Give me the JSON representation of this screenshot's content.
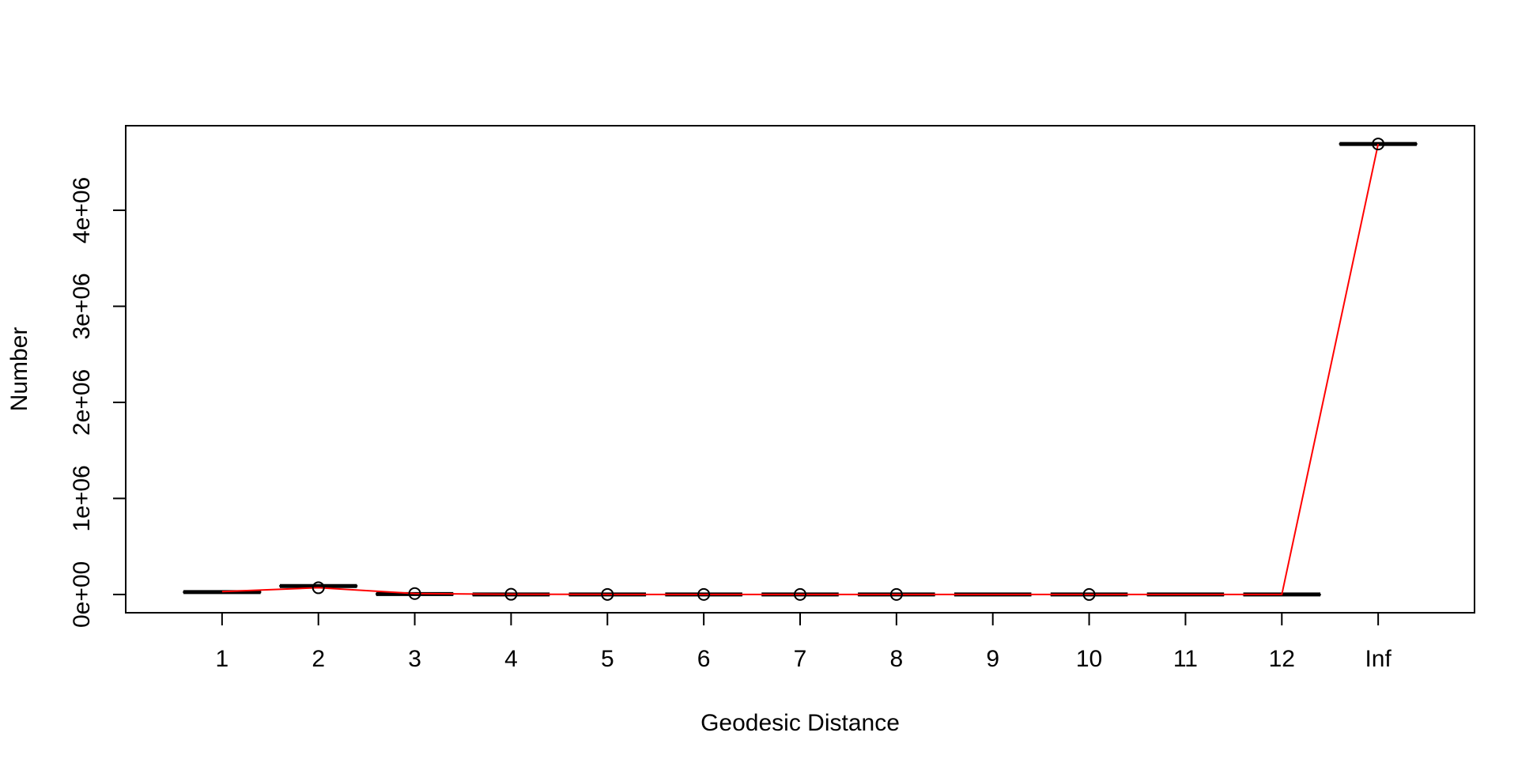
{
  "chart_data": {
    "type": "box",
    "title": "",
    "xlabel": "Geodesic Distance",
    "ylabel": "Number",
    "categories": [
      "1",
      "2",
      "3",
      "4",
      "5",
      "6",
      "7",
      "8",
      "9",
      "10",
      "11",
      "12",
      "Inf"
    ],
    "medians": [
      25000,
      88000,
      4000,
      500,
      200,
      100,
      50,
      30,
      20,
      10,
      5,
      2,
      4690000
    ],
    "boxes": [
      {
        "category": "1",
        "q1": 20000,
        "median": 25000,
        "q3": 30000
      },
      {
        "category": "2",
        "q1": 85000,
        "median": 88000,
        "q3": 92000
      },
      {
        "category": "3",
        "q1": 1000,
        "median": 4000,
        "q3": 8000
      },
      {
        "category": "4",
        "q1": 0,
        "median": 500,
        "q3": 1500
      },
      {
        "category": "5",
        "q1": 0,
        "median": 200,
        "q3": 600
      },
      {
        "category": "6",
        "q1": 0,
        "median": 100,
        "q3": 300
      },
      {
        "category": "7",
        "q1": 0,
        "median": 50,
        "q3": 150
      },
      {
        "category": "8",
        "q1": 0,
        "median": 30,
        "q3": 80
      },
      {
        "category": "9",
        "q1": 0,
        "median": 20,
        "q3": 40
      },
      {
        "category": "10",
        "q1": 0,
        "median": 10,
        "q3": 20
      },
      {
        "category": "11",
        "q1": 0,
        "median": 5,
        "q3": 10
      },
      {
        "category": "12",
        "q1": 0,
        "median": 2,
        "q3": 5
      },
      {
        "category": "Inf",
        "q1": 4686000,
        "median": 4690000,
        "q3": 4694000
      }
    ],
    "observed_series": {
      "values": [
        30000,
        70000,
        10000,
        2000,
        800,
        400,
        200,
        100,
        50,
        30,
        10,
        5,
        4690000
      ],
      "color": "#ff0000",
      "marker": "circle",
      "marker_categories": [
        "2",
        "3",
        "4",
        "5",
        "6",
        "7",
        "8",
        "10",
        "Inf"
      ]
    },
    "yticks": [
      0,
      1000000,
      2000000,
      3000000,
      4000000
    ],
    "ytick_labels": [
      "0e+00",
      "1e+06",
      "2e+06",
      "3e+06",
      "4e+06"
    ],
    "xlim": [
      0,
      14
    ],
    "ylim": [
      -190000,
      4880000
    ],
    "grid": false,
    "box_color": "#000000",
    "line_color": "#ff0000"
  }
}
